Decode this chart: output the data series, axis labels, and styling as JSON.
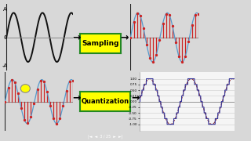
{
  "bg_color": "#d8d8d8",
  "panel_bg": "#f2f2f2",
  "sine_color_black": "#111111",
  "sine_color_blue": "#5599cc",
  "bar_color_red": "#cc2222",
  "dot_color_red": "#cc2222",
  "zero_line_color": "#888888",
  "axis_color": "#222222",
  "arrow_color": "#111111",
  "box_fill": "#ffff00",
  "box_edge": "#228822",
  "box_text_color": "#000000",
  "sampling_label": "Sampling",
  "quantization_label": "Quantization",
  "n_cycles": 2.3,
  "n_samples": 22,
  "quant_levels": 8,
  "grid_color": "#cccccc",
  "nav_bg": "#3a3a3a",
  "quant_sine_color": "#333399",
  "quant_orig_color": "#882222"
}
